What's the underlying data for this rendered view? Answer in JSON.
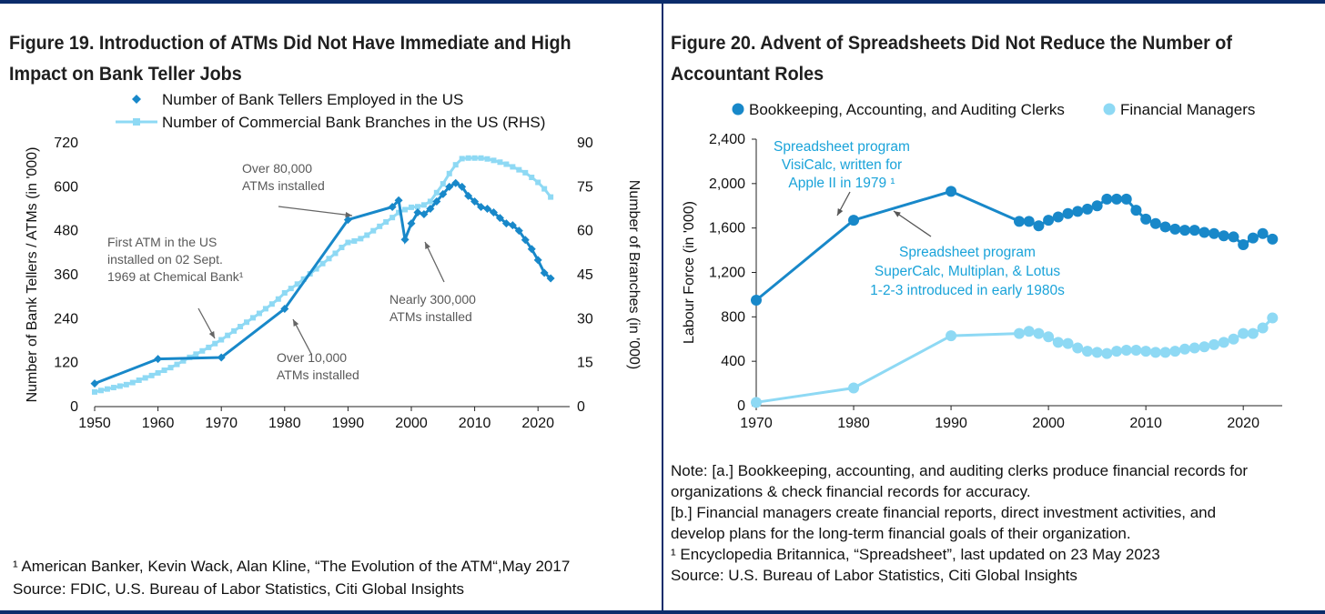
{
  "charts": [
    {
      "id": "fig19",
      "title_line1": "Figure 19. Introduction of ATMs Did Not Have Immediate and High",
      "title_line2": "Impact on Bank Teller Jobs",
      "footnote": "¹ American Banker, Kevin Wack, Alan Kline, “The Evolution of the ATM“,May 2017",
      "source": "Source: FDIC, U.S. Bureau of Labor Statistics, Citi Global Insights"
    },
    {
      "id": "fig20",
      "title_line1": "Figure 20. Advent of Spreadsheets Did Not Reduce the Number of",
      "title_line2": "Accountant Roles",
      "notes": [
        "Note: [a.] Bookkeeping, accounting, and auditing clerks produce financial records for",
        "organizations & check financial records for accuracy.",
        "[b.] Financial managers create financial reports, direct investment activities, and",
        "develop plans for the long-term financial goals of their organization.",
        "¹ Encyclopedia Britannica, “Spreadsheet”, last updated on 23 May 2023",
        "Source: U.S. Bureau of Labor Statistics, Citi Global Insights"
      ]
    }
  ],
  "colors": {
    "dark_blue": "#1888c9",
    "light_blue": "#8ed9f4",
    "annotation_blue": "#1aa3d9",
    "frame": "#0b2c6b"
  },
  "chart_data": [
    {
      "type": "line",
      "xlabel": "",
      "ylabel": "Number of Bank Tellers / ATMs (in '000)",
      "y2label": "Number of Branches (in '000)",
      "xlim": [
        1950,
        2025
      ],
      "xticks": [
        1950,
        1960,
        1970,
        1980,
        1990,
        2000,
        2010,
        2020
      ],
      "ylim": [
        0,
        720
      ],
      "yticks": [
        0,
        120,
        240,
        360,
        480,
        600,
        720
      ],
      "y2lim": [
        0,
        90
      ],
      "y2ticks": [
        0,
        15,
        30,
        45,
        60,
        75,
        90
      ],
      "grid": false,
      "legend_position": "top",
      "series": [
        {
          "name": "Number of Bank Tellers Employed in the US",
          "axis": "left",
          "marker": "diamond",
          "color": "#1888c9",
          "x": [
            1950,
            1960,
            1970,
            1980,
            1990,
            1997,
            1998,
            1999,
            2000,
            2001,
            2002,
            2003,
            2004,
            2005,
            2006,
            2007,
            2008,
            2009,
            2010,
            2011,
            2012,
            2013,
            2014,
            2015,
            2016,
            2017,
            2018,
            2019,
            2020,
            2021,
            2022
          ],
          "y": [
            63,
            130,
            134,
            267,
            510,
            545,
            563,
            456,
            500,
            530,
            525,
            540,
            560,
            580,
            600,
            610,
            600,
            575,
            560,
            545,
            540,
            530,
            515,
            500,
            495,
            480,
            455,
            430,
            400,
            365,
            350
          ]
        },
        {
          "name": "Number of Commercial Bank Branches in the US (RHS)",
          "axis": "right",
          "marker": "square",
          "color": "#8ed9f4",
          "x": [
            1950,
            1951,
            1952,
            1953,
            1954,
            1955,
            1956,
            1957,
            1958,
            1959,
            1960,
            1961,
            1962,
            1963,
            1964,
            1965,
            1966,
            1967,
            1968,
            1969,
            1970,
            1971,
            1972,
            1973,
            1974,
            1975,
            1976,
            1977,
            1978,
            1979,
            1980,
            1981,
            1982,
            1983,
            1984,
            1985,
            1986,
            1987,
            1988,
            1989,
            1990,
            1991,
            1992,
            1993,
            1994,
            1995,
            1996,
            1997,
            1998,
            1999,
            2000,
            2001,
            2002,
            2003,
            2004,
            2005,
            2006,
            2007,
            2008,
            2009,
            2010,
            2011,
            2012,
            2013,
            2014,
            2015,
            2016,
            2017,
            2018,
            2019,
            2020,
            2021,
            2022
          ],
          "y": [
            5,
            5.5,
            6,
            6.5,
            7,
            7.5,
            8.2,
            9,
            9.8,
            10.6,
            11.5,
            12.4,
            13.3,
            14.4,
            15.6,
            16.8,
            17.9,
            19,
            20.2,
            21.5,
            22.8,
            24.3,
            25.8,
            27.3,
            28.8,
            30.3,
            31.8,
            33.4,
            35,
            36.7,
            38.8,
            40.3,
            41.8,
            43.5,
            45.3,
            47,
            48.8,
            50.5,
            52.3,
            54.3,
            56,
            56.5,
            57.3,
            58.5,
            60,
            61.5,
            63,
            64.5,
            66.2,
            67.2,
            68,
            68.2,
            68.8,
            70,
            73,
            76,
            79.5,
            82.5,
            84.6,
            84.8,
            84.8,
            84.8,
            84.5,
            84,
            83.4,
            82.7,
            81.8,
            80.8,
            79.8,
            78.2,
            76.5,
            74.3,
            71.5
          ]
        }
      ],
      "annotations": [
        {
          "lines": [
            "First ATM in the US",
            "installed on 02 Sept.",
            "1969 at Chemical Bank¹"
          ]
        },
        {
          "lines": [
            "Over 80,000",
            "ATMs installed"
          ]
        },
        {
          "lines": [
            "Nearly 300,000",
            "ATMs installed"
          ]
        },
        {
          "lines": [
            "Over 10,000",
            "ATMs installed"
          ]
        }
      ]
    },
    {
      "type": "line",
      "xlabel": "",
      "ylabel": "Labour Force  (in '000)",
      "xlim": [
        1970,
        2024
      ],
      "xticks": [
        1970,
        1980,
        1990,
        2000,
        2010,
        2020
      ],
      "ylim": [
        0,
        2400
      ],
      "yticks": [
        0,
        400,
        800,
        1200,
        1600,
        2000,
        2400
      ],
      "ytick_labels": [
        "0",
        "400",
        "800",
        "1,200",
        "1,600",
        "2,000",
        "2,400"
      ],
      "grid": false,
      "legend_position": "top",
      "series": [
        {
          "name": "Bookkeeping, Accounting, and Auditing Clerks",
          "color": "#1888c9",
          "marker": "circle",
          "x": [
            1970,
            1980,
            1990,
            1997,
            1998,
            1999,
            2000,
            2001,
            2002,
            2003,
            2004,
            2005,
            2006,
            2007,
            2008,
            2009,
            2010,
            2011,
            2012,
            2013,
            2014,
            2015,
            2016,
            2017,
            2018,
            2019,
            2020,
            2021,
            2022,
            2023
          ],
          "y": [
            950,
            1670,
            1930,
            1660,
            1660,
            1620,
            1670,
            1700,
            1730,
            1750,
            1770,
            1800,
            1860,
            1860,
            1860,
            1760,
            1680,
            1640,
            1610,
            1590,
            1580,
            1580,
            1560,
            1550,
            1530,
            1520,
            1450,
            1510,
            1550,
            1500
          ]
        },
        {
          "name": "Financial Managers",
          "color": "#8ed9f4",
          "marker": "circle",
          "x": [
            1970,
            1980,
            1990,
            1997,
            1998,
            1999,
            2000,
            2001,
            2002,
            2003,
            2004,
            2005,
            2006,
            2007,
            2008,
            2009,
            2010,
            2011,
            2012,
            2013,
            2014,
            2015,
            2016,
            2017,
            2018,
            2019,
            2020,
            2021,
            2022,
            2023
          ],
          "y": [
            30,
            160,
            630,
            650,
            670,
            650,
            620,
            570,
            560,
            520,
            490,
            480,
            470,
            490,
            500,
            500,
            490,
            480,
            480,
            490,
            510,
            520,
            530,
            550,
            570,
            600,
            650,
            650,
            700,
            790
          ]
        }
      ],
      "annotations": [
        {
          "lines": [
            "Spreadsheet program",
            "VisiCalc, written for",
            "Apple II in 1979 ¹"
          ]
        },
        {
          "lines": [
            "Spreadsheet program",
            "SuperCalc, Multiplan, & Lotus",
            "1-2-3 introduced in early 1980s"
          ]
        }
      ]
    }
  ]
}
